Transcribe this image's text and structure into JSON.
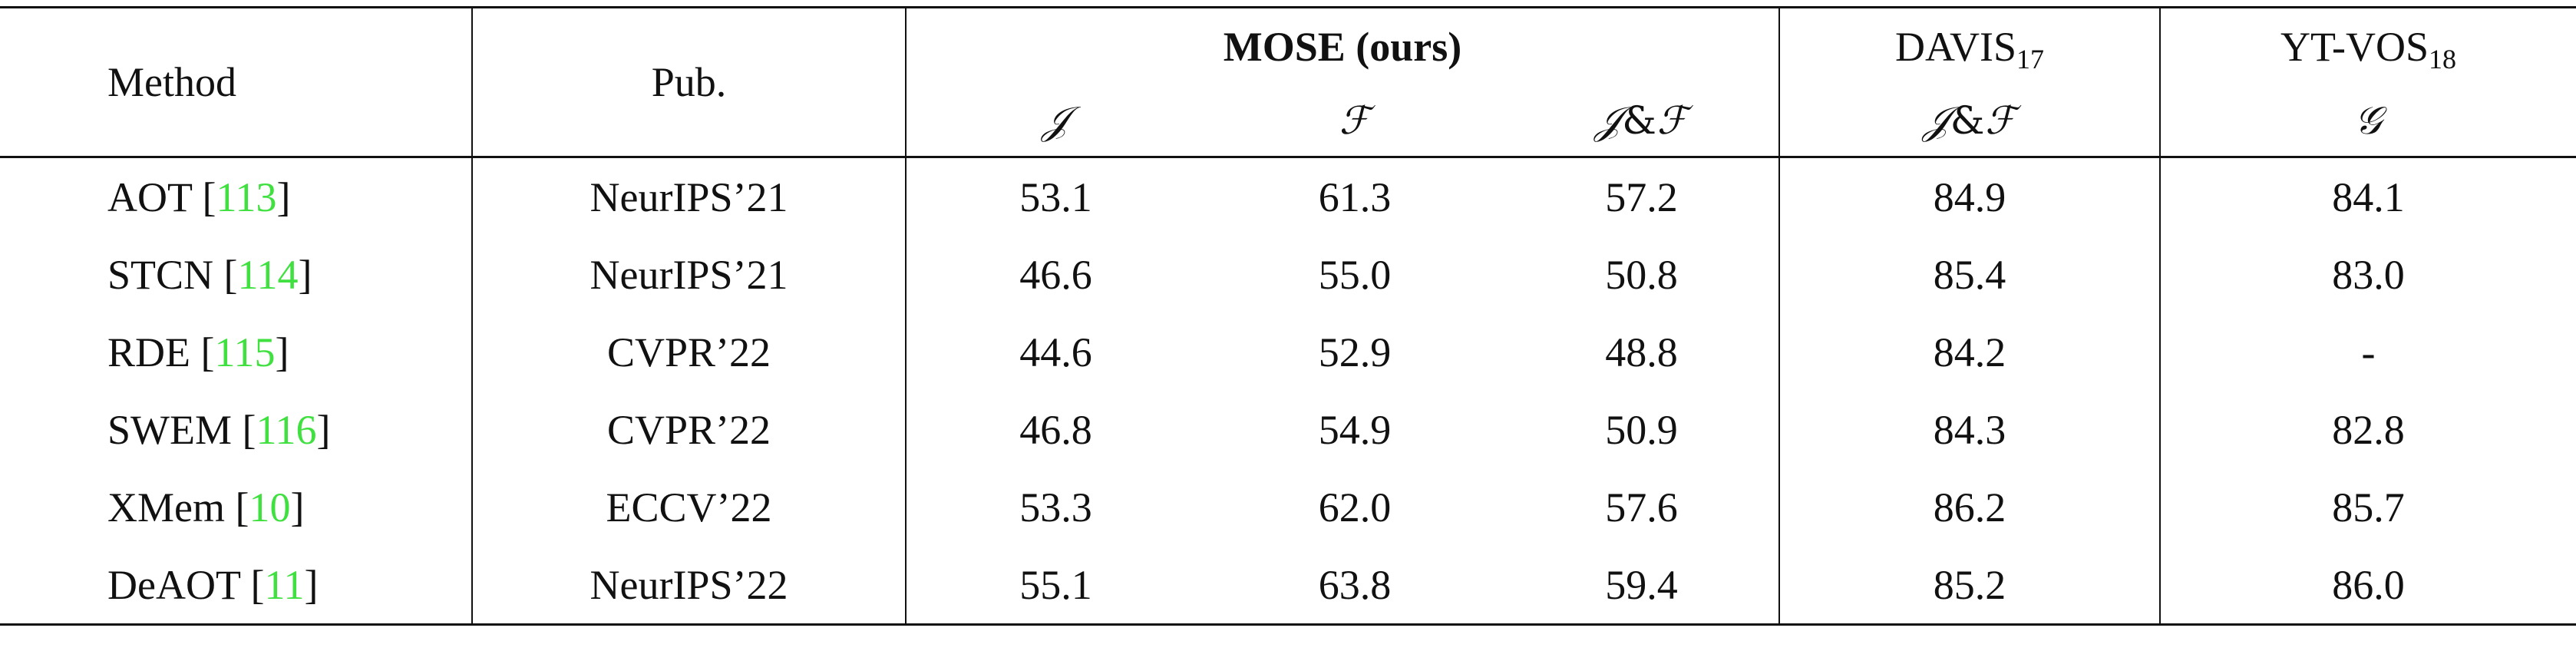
{
  "header": {
    "method": "Method",
    "pub": "Pub.",
    "groups": {
      "mose": "MOSE (ours)",
      "davis_base": "DAVIS",
      "davis_sub": "17",
      "ytvos_base": "YT-VOS",
      "ytvos_sub": "18"
    },
    "metrics": {
      "mose_j": "𝒥",
      "mose_f": "ℱ",
      "mose_jf_j": "𝒥",
      "mose_jf_amp": "&",
      "mose_jf_f": "ℱ",
      "davis_jf_j": "𝒥",
      "davis_jf_amp": "&",
      "davis_jf_f": "ℱ",
      "ytvos_g": "𝒢"
    }
  },
  "rows": [
    {
      "name": "AOT",
      "lb": " [",
      "ref": "113",
      "rb": "]",
      "pub": "NeurIPS’21",
      "j": "53.1",
      "f": "61.3",
      "jf": "57.2",
      "davis": "84.9",
      "ytvos": "84.1"
    },
    {
      "name": "STCN",
      "lb": " [",
      "ref": "114",
      "rb": "]",
      "pub": "NeurIPS’21",
      "j": "46.6",
      "f": "55.0",
      "jf": "50.8",
      "davis": "85.4",
      "ytvos": "83.0"
    },
    {
      "name": "RDE",
      "lb": " [",
      "ref": "115",
      "rb": "]",
      "pub": "CVPR’22",
      "j": "44.6",
      "f": "52.9",
      "jf": "48.8",
      "davis": "84.2",
      "ytvos": "-"
    },
    {
      "name": "SWEM",
      "lb": " [",
      "ref": "116",
      "rb": "]",
      "pub": "CVPR’22",
      "j": "46.8",
      "f": "54.9",
      "jf": "50.9",
      "davis": "84.3",
      "ytvos": "82.8"
    },
    {
      "name": "XMem",
      "lb": " [",
      "ref": "10",
      "rb": "]",
      "pub": "ECCV’22",
      "j": "53.3",
      "f": "62.0",
      "jf": "57.6",
      "davis": "86.2",
      "ytvos": "85.7"
    },
    {
      "name": "DeAOT",
      "lb": " [",
      "ref": "11",
      "rb": "]",
      "pub": "NeurIPS’22",
      "j": "55.1",
      "f": "63.8",
      "jf": "59.4",
      "davis": "85.2",
      "ytvos": "86.0"
    }
  ],
  "colors": {
    "reference_link": "#3fe03f",
    "rule": "#111111",
    "text": "#111111"
  }
}
